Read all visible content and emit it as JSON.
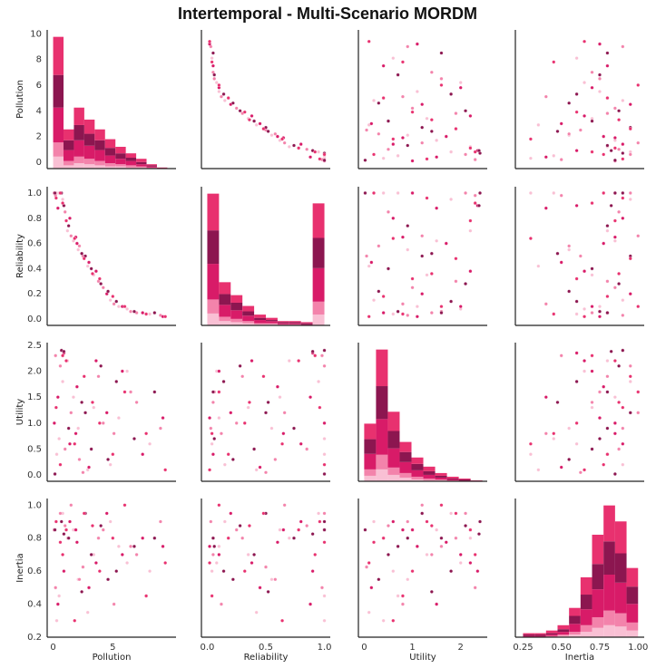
{
  "chart_data": {
    "type": "pairplot",
    "title": "Intertemporal - Multi-Scenario MORDM",
    "variables": [
      {
        "name": "Pollution",
        "lim": [
          -0.5,
          10.3
        ],
        "xticks": [
          0,
          5
        ],
        "yticks": [
          0,
          2,
          4,
          6,
          8,
          10
        ]
      },
      {
        "name": "Reliability",
        "lim": [
          -0.05,
          1.05
        ],
        "xticks": [
          {
            "value": 0,
            "label": "0.0"
          },
          {
            "value": 0.5,
            "label": "0.5"
          },
          {
            "value": 1,
            "label": "1.0"
          }
        ],
        "yticks": [
          {
            "value": 0,
            "label": "0.0"
          },
          0.2,
          0.4,
          0.6,
          0.8,
          {
            "value": 1,
            "label": "1.0"
          }
        ]
      },
      {
        "name": "Utility",
        "lim": [
          -0.12,
          2.55
        ],
        "xticks": [
          0,
          1,
          2
        ],
        "yticks": [
          {
            "value": 0,
            "label": "0.0"
          },
          0.5,
          {
            "value": 1,
            "label": "1.0"
          },
          1.5,
          {
            "value": 2,
            "label": "2.0"
          },
          2.5
        ]
      },
      {
        "name": "Inertia",
        "lim": [
          0.2,
          1.04
        ],
        "xticks": [
          0.25,
          {
            "value": 0.5,
            "label": "0.50"
          },
          0.75,
          {
            "value": 1,
            "label": "1.00"
          }
        ],
        "yticks": [
          0.2,
          0.4,
          0.6,
          0.8,
          {
            "value": 1,
            "label": "1.0"
          }
        ]
      }
    ],
    "series": [
      {
        "color": "#f9c0d4",
        "values": [
          [
            0.3,
            0.8,
            1.2,
            2.1,
            3.4,
            4.8,
            6.2,
            0.5,
            1.7,
            2.9,
            5.5,
            8.1
          ],
          [
            1.0,
            0.95,
            0.7,
            0.55,
            0.35,
            0.15,
            0.08,
            1.0,
            0.62,
            0.42,
            0.1,
            0.04
          ],
          [
            0.4,
            1.8,
            2.2,
            0.9,
            1.3,
            0.2,
            2.0,
            0.7,
            1.5,
            0.1,
            1.1,
            0.6
          ],
          [
            0.3,
            0.95,
            0.8,
            0.55,
            0.7,
            0.9,
            0.65,
            0.45,
            0.85,
            0.35,
            0.75,
            0.6
          ]
        ]
      },
      {
        "color": "#f383ab",
        "values": [
          [
            0.2,
            1.0,
            1.5,
            2.5,
            3.8,
            5.1,
            7.0,
            0.6,
            2.2,
            4.2,
            6.5,
            9.0
          ],
          [
            0.98,
            0.85,
            0.66,
            0.5,
            0.3,
            0.12,
            0.05,
            1.0,
            0.58,
            0.25,
            0.06,
            0.03
          ],
          [
            2.3,
            0.5,
            1.2,
            0.05,
            1.9,
            0.8,
            1.4,
            2.1,
            0.3,
            1.0,
            1.6,
            0.9
          ],
          [
            0.5,
            0.875,
            1.0,
            0.625,
            0.8,
            0.4,
            0.7,
            0.95,
            0.55,
            0.85,
            0.75,
            0.9
          ]
        ]
      },
      {
        "color": "#d81b68",
        "values": [
          [
            0.1,
            0.9,
            1.4,
            2.0,
            3.0,
            4.5,
            5.8,
            7.5,
            0.4,
            1.9,
            3.6,
            9.2
          ],
          [
            1.0,
            0.9,
            0.8,
            0.6,
            0.45,
            0.2,
            0.1,
            0.05,
            0.88,
            0.65,
            0.38,
            0.02
          ],
          [
            1.0,
            2.35,
            0.6,
            1.7,
            0.15,
            1.2,
            2.0,
            0.4,
            1.5,
            0.8,
            2.2,
            1.1
          ],
          [
            0.85,
            0.6,
            0.9,
            0.775,
            0.5,
            0.95,
            0.7,
            0.8,
            0.4,
            0.85,
            0.65,
            0.75
          ]
        ]
      },
      {
        "color": "#8c1650",
        "values": [
          [
            0.15,
            0.7,
            1.3,
            2.4,
            3.2,
            4.0,
            5.3,
            6.8,
            0.9,
            2.7,
            4.6,
            8.5
          ],
          [
            1.0,
            1.0,
            0.74,
            0.52,
            0.4,
            0.28,
            0.14,
            0.06,
            0.9,
            0.5,
            0.22,
            0.05
          ],
          [
            0.02,
            2.4,
            0.9,
            1.4,
            0.5,
            2.1,
            1.8,
            0.7,
            2.38,
            1.2,
            0.3,
            1.6
          ],
          [
            0.85,
            0.9,
            0.8,
            0.475,
            0.7,
            0.875,
            0.6,
            0.75,
            0.825,
            0.95,
            0.55,
            0.8
          ]
        ]
      },
      {
        "color": "#e8316f",
        "values": [
          [
            0.25,
            0.6,
            1.1,
            1.8,
            2.6,
            3.9,
            5.0,
            6.0,
            7.8,
            0.8,
            3.3,
            9.4
          ],
          [
            0.96,
            1.0,
            0.78,
            0.64,
            0.48,
            0.32,
            0.18,
            0.1,
            0.04,
            0.92,
            0.36,
            0.02
          ],
          [
            1.3,
            0.2,
            2.2,
            0.6,
            1.9,
            1.0,
            0.4,
            1.6,
            0.8,
            2.3,
            1.4,
            0.1
          ],
          [
            0.9,
            0.775,
            0.85,
            0.3,
            0.95,
            0.6,
            0.8,
            1.0,
            0.45,
            0.7,
            0.875,
            0.65
          ]
        ]
      }
    ],
    "histograms": [
      {
        "bins": [
          0,
          0.87,
          1.74,
          2.61,
          3.48,
          4.35,
          5.22,
          6.09,
          6.96,
          7.83,
          8.7,
          9.57
        ],
        "counts": [
          [
            11,
            3,
            5,
            4,
            3,
            2,
            2,
            1,
            1,
            0,
            0
          ],
          [
            13,
            4,
            6,
            5,
            4,
            3,
            2,
            2,
            1,
            1,
            0
          ],
          [
            32,
            10,
            15,
            12,
            10,
            7,
            5,
            4,
            2,
            1,
            0
          ],
          [
            30,
            9,
            14,
            11,
            9,
            7,
            5,
            3,
            2,
            1,
            0
          ],
          [
            35,
            10,
            16,
            13,
            10,
            8,
            6,
            4,
            3,
            1,
            1
          ]
        ]
      },
      {
        "bins": [
          0,
          0.1,
          0.2,
          0.3,
          0.4,
          0.5,
          0.6,
          0.7,
          0.8,
          0.9,
          1.0
        ],
        "counts": [
          [
            11,
            4,
            3,
            2,
            1,
            1,
            0,
            0,
            0,
            10
          ],
          [
            13,
            4,
            3,
            2,
            1,
            1,
            1,
            1,
            0,
            12
          ],
          [
            33,
            11,
            8,
            5,
            3,
            2,
            1,
            1,
            1,
            31
          ],
          [
            31,
            10,
            7,
            4,
            2,
            1,
            1,
            1,
            1,
            28
          ],
          [
            34,
            11,
            7,
            5,
            3,
            2,
            1,
            1,
            1,
            32
          ]
        ]
      },
      {
        "bins": [
          0,
          0.245,
          0.49,
          0.735,
          0.98,
          1.225,
          1.47,
          1.715,
          1.96,
          2.205,
          2.45
        ],
        "counts": [
          [
            6,
            13,
            7,
            4,
            2,
            1,
            1,
            0,
            0,
            0
          ],
          [
            7,
            16,
            8,
            5,
            3,
            2,
            1,
            1,
            0,
            0
          ],
          [
            17,
            39,
            21,
            12,
            7,
            4,
            2,
            1,
            1,
            0
          ],
          [
            16,
            36,
            19,
            11,
            7,
            4,
            2,
            1,
            1,
            0
          ],
          [
            17,
            40,
            21,
            11,
            7,
            5,
            3,
            2,
            1,
            1
          ]
        ]
      },
      {
        "bins": [
          0.25,
          0.325,
          0.4,
          0.475,
          0.55,
          0.625,
          0.7,
          0.775,
          0.85,
          0.925,
          1.0
        ],
        "counts": [
          [
            0,
            0,
            0,
            1,
            2,
            4,
            7,
            9,
            8,
            5
          ],
          [
            0,
            0,
            1,
            1,
            2,
            5,
            8,
            11,
            10,
            6
          ],
          [
            1,
            1,
            1,
            2,
            6,
            12,
            21,
            27,
            23,
            14
          ],
          [
            1,
            1,
            1,
            2,
            6,
            11,
            19,
            25,
            22,
            13
          ],
          [
            1,
            1,
            2,
            3,
            6,
            13,
            22,
            27,
            24,
            14
          ]
        ]
      }
    ]
  }
}
